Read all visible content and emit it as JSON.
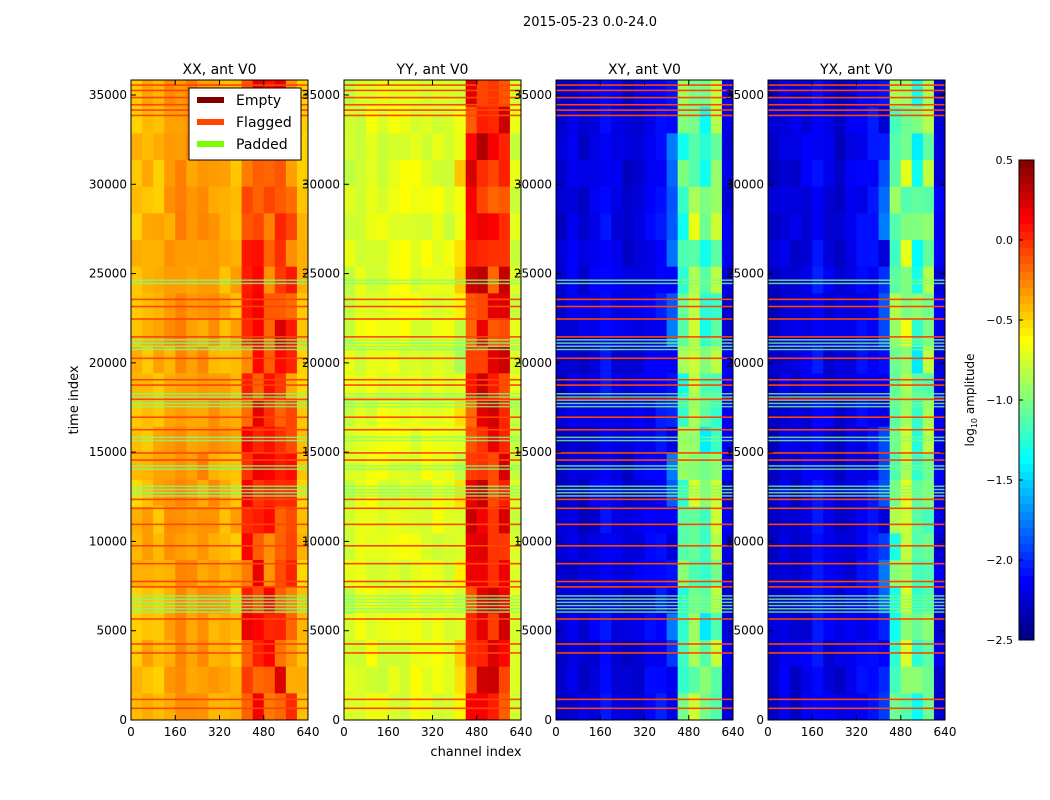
{
  "chart_data": {
    "type": "heatmap",
    "title": "2015-05-23 0.0-24.0",
    "xlabel": "channel index",
    "ylabel": "time index",
    "xlim": [
      0,
      640
    ],
    "ylim": [
      0,
      35840
    ],
    "xticks": [
      "0",
      "160",
      "320",
      "480",
      "640"
    ],
    "xtick_values": [
      0,
      160,
      320,
      480,
      640
    ],
    "yticks": [
      "0",
      "5000",
      "10000",
      "15000",
      "20000",
      "25000",
      "30000",
      "35000"
    ],
    "ytick_values": [
      0,
      5000,
      10000,
      15000,
      20000,
      25000,
      30000,
      35000
    ],
    "colorbar": {
      "label_main": "log",
      "label_sub": "10",
      "label_rest": " amplitude",
      "range": [
        -2.5,
        0.5
      ],
      "ticks": [
        "0.5",
        "0.0",
        "−0.5",
        "−1.0",
        "−1.5",
        "−2.0",
        "−2.5"
      ],
      "tick_values": [
        0.5,
        0.0,
        -0.5,
        -1.0,
        -1.5,
        -2.0,
        -2.5
      ]
    },
    "legend": {
      "placement": "top-right of first panel",
      "entries": [
        {
          "label": "Empty",
          "color": "#800000"
        },
        {
          "label": "Flagged",
          "color": "#ff4500"
        },
        {
          "label": "Padded",
          "color": "#7cfc00"
        }
      ]
    },
    "panels": [
      {
        "title": "XX, ant V0",
        "channel_profile": [
          -0.45,
          -0.4,
          -0.42,
          -0.35,
          -0.3,
          -0.3,
          -0.32,
          -0.35,
          -0.38,
          -0.4,
          -0.05,
          0.05,
          -0.1,
          0.0,
          -0.15,
          -0.45
        ]
      },
      {
        "title": "YY, ant V0",
        "channel_profile": [
          -0.75,
          -0.72,
          -0.7,
          -0.72,
          -0.7,
          -0.7,
          -0.68,
          -0.7,
          -0.7,
          -0.72,
          -0.7,
          0.05,
          0.15,
          0.05,
          0.1,
          -0.75
        ]
      },
      {
        "title": "XY, ant V0",
        "channel_profile": [
          -2.3,
          -2.2,
          -2.25,
          -2.2,
          -2.1,
          -2.2,
          -2.25,
          -2.2,
          -2.15,
          -2.1,
          -2.0,
          -1.1,
          -0.9,
          -1.2,
          -1.0,
          -2.2
        ]
      },
      {
        "title": "YX, ant V0",
        "channel_profile": [
          -2.3,
          -2.2,
          -2.25,
          -2.2,
          -2.1,
          -2.2,
          -2.25,
          -2.2,
          -2.15,
          -2.1,
          -2.0,
          -1.1,
          -0.9,
          -1.2,
          -1.0,
          -2.2
        ]
      }
    ],
    "flagged_times": [
      700,
      1200,
      3800,
      4300,
      5700,
      7500,
      7800,
      8800,
      9800,
      11000,
      11900,
      12400,
      14600,
      15000,
      16300,
      17000,
      18000,
      18800,
      19100,
      20300,
      21500,
      22500,
      23200,
      23600,
      33900,
      34200,
      34500,
      34900,
      35300,
      35600
    ],
    "padded_times": [
      [
        6000,
        7000
      ],
      [
        12500,
        13200
      ],
      [
        14000,
        14200
      ],
      [
        17500,
        18300
      ],
      [
        20700,
        21300
      ],
      [
        24400,
        24600
      ],
      [
        15600,
        15800
      ]
    ]
  }
}
